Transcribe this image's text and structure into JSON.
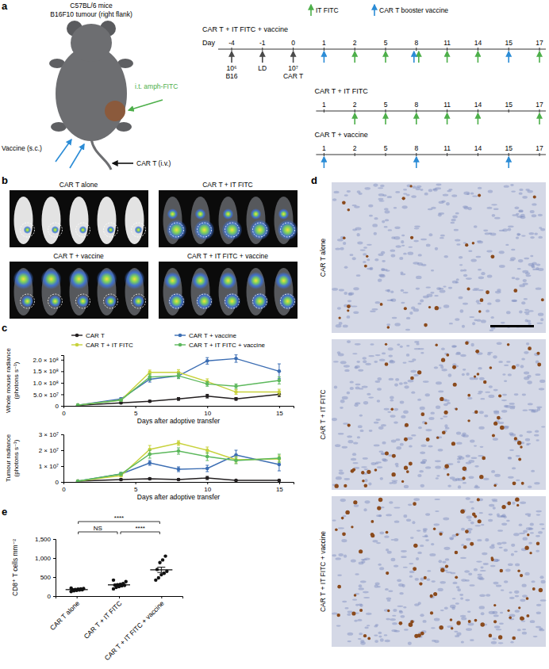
{
  "panel_labels": [
    "a",
    "b",
    "c",
    "d",
    "e"
  ],
  "schematic": {
    "mouse_labels": {
      "strain": "C57BL/6 mice",
      "tumour": "B16F10 tumour (right flank)",
      "it": "i.t. amph-FITC",
      "vaccine": "Vaccine (s.c.)",
      "cart": "CAR T (i.v.)"
    },
    "legend": [
      {
        "name": "IT FITC",
        "color": "#4daf4a"
      },
      {
        "name": "CAR T booster vaccine",
        "color": "#2b8cd6"
      }
    ],
    "day_label": "Day",
    "rows": [
      {
        "name": "CAR T + IT FITC + vaccine",
        "days": [
          -4,
          -1,
          0,
          1,
          2,
          5,
          8,
          11,
          14,
          15,
          17
        ],
        "fitc_days": [
          2,
          5,
          8,
          11,
          14,
          17
        ],
        "vaccine_days": [
          1,
          8,
          15
        ],
        "setup": [
          {
            "day": -4,
            "lines": [
              "10⁶",
              "B16"
            ]
          },
          {
            "day": -1,
            "lines": [
              "LD"
            ]
          },
          {
            "day": 0,
            "lines": [
              "10⁷",
              "CAR T"
            ]
          }
        ]
      },
      {
        "name": "CAR T + IT FITC",
        "days": [
          1,
          2,
          5,
          8,
          11,
          14,
          15,
          17
        ],
        "fitc_days": [
          2,
          5,
          8,
          11,
          14,
          17
        ],
        "vaccine_days": []
      },
      {
        "name": "CAR T + vaccine",
        "days": [
          1,
          2,
          5,
          8,
          11,
          14,
          15,
          17
        ],
        "fitc_days": [],
        "vaccine_days": [
          1,
          8,
          15
        ]
      }
    ]
  },
  "images": {
    "b_groups": [
      "CAR T alone",
      "CAR T + IT FITC",
      "CAR T + vaccine",
      "CAR T + IT FITC + vaccine"
    ],
    "d_groups": [
      "CAR T alone",
      "CAR T + IT FITC",
      "CAR T + IT FITC + vaccine"
    ]
  },
  "chart_data": [
    {
      "type": "line",
      "y_label": [
        "Whole mouse radiance",
        "(photons s⁻¹)"
      ],
      "x_label": "Days after adoptive transfer",
      "x": [
        1,
        4,
        6,
        8,
        10,
        12,
        15
      ],
      "xlim": [
        0,
        16
      ],
      "xticks": [
        0,
        5,
        10,
        15
      ],
      "ylim": [
        0,
        220000000
      ],
      "yticks": [
        0,
        {
          "value": 50000000,
          "label": "5.0 × 10⁷"
        },
        {
          "value": 100000000,
          "label": "1.0 × 10⁸"
        },
        {
          "value": 150000000,
          "label": "1.5 × 10⁸"
        },
        {
          "value": 200000000,
          "label": "2.0 × 10⁸"
        }
      ],
      "marker": "circle",
      "legend": "top",
      "series": [
        {
          "name": "CAR T",
          "color": "#231f20",
          "values": [
            2000000,
            13000000,
            20000000,
            30000000,
            42000000,
            30000000,
            50000000
          ],
          "errors": [
            1000000,
            3000000,
            4000000,
            6000000,
            8000000,
            6000000,
            10000000
          ]
        },
        {
          "name": "CAR T + vaccine",
          "color": "#3b6db3",
          "values": [
            3000000,
            30000000,
            115000000,
            130000000,
            195000000,
            205000000,
            150000000
          ],
          "errors": [
            1000000,
            5000000,
            12000000,
            10000000,
            14000000,
            16000000,
            32000000
          ]
        },
        {
          "name": "CAR T + IT FITC",
          "color": "#c8d23c",
          "values": [
            3000000,
            25000000,
            145000000,
            145000000,
            105000000,
            60000000,
            60000000
          ],
          "errors": [
            1000000,
            4000000,
            10000000,
            12000000,
            12000000,
            10000000,
            12000000
          ]
        },
        {
          "name": "CAR T + IT FITC + vaccine",
          "color": "#5cb85c",
          "values": [
            3000000,
            25000000,
            125000000,
            130000000,
            95000000,
            85000000,
            110000000
          ],
          "errors": [
            1000000,
            4000000,
            13000000,
            12000000,
            10000000,
            10000000,
            15000000
          ]
        }
      ]
    },
    {
      "type": "line",
      "y_label": [
        "Tumour radiance",
        "(photons s⁻¹)"
      ],
      "x_label": "Days after adoptive transfer",
      "x": [
        1,
        4,
        6,
        8,
        10,
        12,
        15
      ],
      "xlim": [
        0,
        16
      ],
      "xticks": [
        0,
        5,
        10,
        15
      ],
      "ylim": [
        0,
        30000000
      ],
      "yticks": [
        0,
        {
          "value": 10000000,
          "label": "1 × 10⁷"
        },
        {
          "value": 20000000,
          "label": "2 × 10⁷"
        },
        {
          "value": 30000000,
          "label": "3 × 10⁷"
        }
      ],
      "marker": "circle",
      "series": [
        {
          "color": "#231f20",
          "values": [
            500000,
            1500000,
            2000000,
            1500000,
            2500000,
            1000000,
            1000000
          ],
          "errors": [
            200000,
            500000,
            500000,
            500000,
            1000000,
            300000,
            300000
          ]
        },
        {
          "color": "#3b6db3",
          "values": [
            500000,
            5000000,
            12000000,
            8000000,
            8500000,
            17000000,
            11000000
          ],
          "errors": [
            200000,
            1000000,
            1500000,
            1500000,
            2000000,
            3000000,
            4000000
          ]
        },
        {
          "color": "#c8d23c",
          "values": [
            500000,
            4000000,
            20500000,
            24500000,
            20000000,
            14000000,
            14500000
          ],
          "errors": [
            200000,
            800000,
            2500000,
            1500000,
            2000000,
            2000000,
            2000000
          ]
        },
        {
          "color": "#5cb85c",
          "values": [
            500000,
            5000000,
            17500000,
            19500000,
            16000000,
            13500000,
            15000000
          ],
          "errors": [
            200000,
            1000000,
            2500000,
            2000000,
            2500000,
            2000000,
            2500000
          ]
        }
      ]
    },
    {
      "type": "scatter",
      "y_label": "CD8⁺ T cells mm⁻²",
      "categories": [
        "CAR T alone",
        "CAR T + IT FITC",
        "CAR T + IT FITC + vaccine"
      ],
      "ylim": [
        0,
        1500
      ],
      "yticks": [
        0,
        500,
        {
          "value": 1000,
          "label": "1,000"
        },
        {
          "value": 1500,
          "label": "1,500"
        }
      ],
      "color": "#111111",
      "marker": "circle",
      "groups": [
        {
          "values": [
            120,
            140,
            150,
            160,
            165,
            170,
            175,
            185,
            190,
            200,
            210
          ],
          "mean": 170,
          "sem": 8
        },
        {
          "values": [
            190,
            230,
            250,
            270,
            280,
            290,
            300,
            310,
            330,
            380,
            420
          ],
          "mean": 295,
          "sem": 20
        },
        {
          "values": [
            420,
            480,
            560,
            600,
            650,
            700,
            880,
            950,
            1050
          ],
          "mean": 690,
          "sem": 70
        }
      ],
      "comparisons": [
        {
          "groups": [
            0,
            1
          ],
          "label": "NS"
        },
        {
          "groups": [
            0,
            2
          ],
          "label": "****"
        },
        {
          "groups": [
            1,
            2
          ],
          "label": "****"
        }
      ]
    }
  ]
}
